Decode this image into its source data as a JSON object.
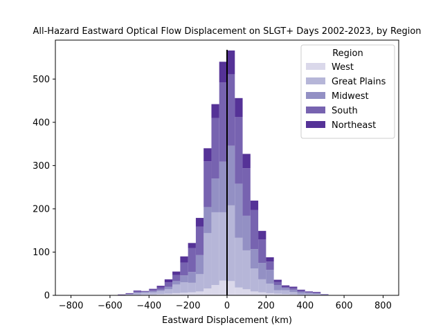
{
  "chart_data": {
    "type": "bar",
    "stacked": true,
    "title": "All-Hazard Eastward Optical Flow Displacement on SLGT+ Days 2002-2023, by Region",
    "xlabel": "Eastward Displacement (km)",
    "ylabel": "",
    "xlim": [
      -880,
      880
    ],
    "ylim": [
      0,
      590
    ],
    "x_ticks": [
      -800,
      -600,
      -400,
      -200,
      0,
      200,
      400,
      600,
      800
    ],
    "y_ticks": [
      0,
      100,
      200,
      300,
      400,
      500
    ],
    "x_tick_labels": [
      "−800",
      "−600",
      "−400",
      "−200",
      "0",
      "200",
      "400",
      "600",
      "800"
    ],
    "y_tick_labels": [
      "0",
      "100",
      "200",
      "300",
      "400",
      "500"
    ],
    "bin_width": 40,
    "bin_left_edges": [
      -600,
      -560,
      -520,
      -480,
      -440,
      -400,
      -360,
      -320,
      -280,
      -240,
      -200,
      -160,
      -120,
      -80,
      -40,
      0,
      40,
      80,
      120,
      160,
      200,
      240,
      280,
      320,
      360,
      400,
      440,
      480,
      520,
      560
    ],
    "series": [
      {
        "name": "West",
        "color": "#dad8ea",
        "values": [
          0,
          0,
          1,
          1,
          2,
          2,
          3,
          4,
          5,
          6,
          7,
          9,
          16,
          24,
          34,
          33,
          18,
          14,
          9,
          7,
          5,
          4,
          3,
          2,
          1,
          1,
          1,
          0,
          0,
          0
        ]
      },
      {
        "name": "Great Plains",
        "color": "#b6b6d8",
        "values": [
          0,
          1,
          1,
          4,
          4,
          5,
          7,
          10,
          20,
          24,
          22,
          40,
          128,
          168,
          158,
          175,
          115,
          90,
          53,
          30,
          22,
          8,
          9,
          6,
          3,
          3,
          2,
          1,
          0,
          0
        ]
      },
      {
        "name": "Midwest",
        "color": "#9390c4",
        "values": [
          0,
          0,
          1,
          2,
          2,
          3,
          3,
          6,
          8,
          16,
          25,
          44,
          60,
          78,
          117,
          138,
          125,
          80,
          45,
          38,
          32,
          12,
          5,
          5,
          4,
          2,
          2,
          1,
          0,
          0
        ]
      },
      {
        "name": "South",
        "color": "#7763b0",
        "values": [
          0,
          0,
          1,
          2,
          1,
          3,
          5,
          10,
          14,
          30,
          55,
          66,
          106,
          140,
          183,
          165,
          154,
          110,
          90,
          54,
          19,
          7,
          3,
          4,
          3,
          2,
          2,
          1,
          0,
          0
        ]
      },
      {
        "name": "Northeast",
        "color": "#553297",
        "values": [
          0,
          1,
          1,
          2,
          1,
          2,
          4,
          7,
          8,
          14,
          12,
          20,
          30,
          32,
          48,
          55,
          44,
          33,
          22,
          20,
          10,
          5,
          3,
          3,
          2,
          1,
          1,
          0,
          0,
          0
        ]
      }
    ],
    "vertical_line": {
      "x": 0,
      "color": "#000000"
    },
    "legend": {
      "title": "Region",
      "placement": "top-right"
    },
    "grid": false
  }
}
